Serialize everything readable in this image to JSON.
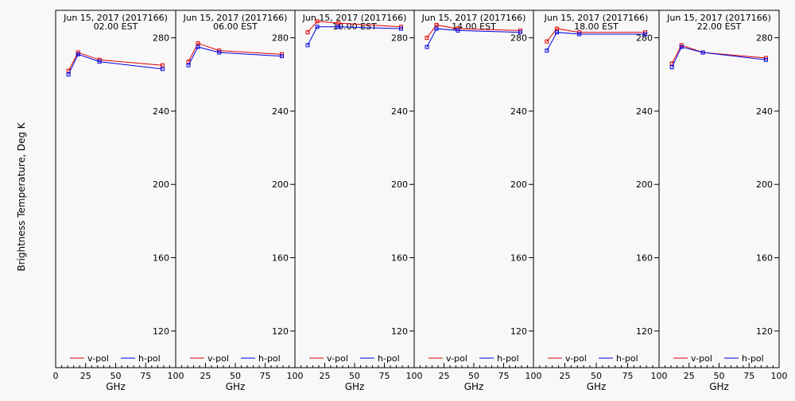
{
  "figure": {
    "ylabel": "Brightness Temperature, Deg K",
    "xlabel": "GHz",
    "colors": {
      "v_pol": "#e00000",
      "h_pol": "#0000e0"
    }
  },
  "chart_data": [
    {
      "type": "line",
      "title": "Jun 15, 2017 (2017166)",
      "subtitle": "02.00 EST",
      "xlabel": "GHz",
      "ylabel": "Brightness Temperature, Deg K",
      "xlim": [
        0,
        100
      ],
      "ylim": [
        100,
        295
      ],
      "xticks": [
        0,
        25,
        50,
        75,
        100
      ],
      "yticks": [
        120,
        160,
        200,
        240,
        280
      ],
      "x": [
        10.7,
        18.7,
        36.5,
        89.0
      ],
      "series": [
        {
          "name": "v-pol",
          "color": "#e00000",
          "values": [
            262,
            272,
            268,
            265
          ]
        },
        {
          "name": "h-pol",
          "color": "#0000e0",
          "values": [
            260,
            271,
            267,
            263
          ]
        }
      ],
      "legend": "bottom"
    },
    {
      "type": "line",
      "title": "Jun 15, 2017 (2017166)",
      "subtitle": "06.00 EST",
      "xlabel": "GHz",
      "xlim": [
        0,
        100
      ],
      "ylim": [
        100,
        295
      ],
      "xticks": [
        0,
        25,
        50,
        75,
        100
      ],
      "yticks": [
        120,
        160,
        200,
        240,
        280
      ],
      "x": [
        10.7,
        18.7,
        36.5,
        89.0
      ],
      "series": [
        {
          "name": "v-pol",
          "color": "#e00000",
          "values": [
            267,
            277,
            273,
            271
          ]
        },
        {
          "name": "h-pol",
          "color": "#0000e0",
          "values": [
            265,
            275,
            272,
            270
          ]
        }
      ],
      "legend": "bottom"
    },
    {
      "type": "line",
      "title": "Jun 15, 2017 (2017166)",
      "subtitle": "10.00 EST",
      "xlabel": "GHz",
      "xlim": [
        0,
        100
      ],
      "ylim": [
        100,
        295
      ],
      "xticks": [
        0,
        25,
        50,
        75,
        100
      ],
      "yticks": [
        120,
        160,
        200,
        240,
        280
      ],
      "x": [
        10.7,
        18.7,
        36.5,
        89.0
      ],
      "series": [
        {
          "name": "v-pol",
          "color": "#e00000",
          "values": [
            283,
            289,
            288,
            286
          ]
        },
        {
          "name": "h-pol",
          "color": "#0000e0",
          "values": [
            276,
            286,
            286,
            285
          ]
        }
      ],
      "legend": "bottom"
    },
    {
      "type": "line",
      "title": "Jun 15, 2017 (2017166)",
      "subtitle": "14.00 EST",
      "xlabel": "GHz",
      "xlim": [
        0,
        100
      ],
      "ylim": [
        100,
        295
      ],
      "xticks": [
        0,
        25,
        50,
        75,
        100
      ],
      "yticks": [
        120,
        160,
        200,
        240,
        280
      ],
      "x": [
        10.7,
        18.7,
        36.5,
        89.0
      ],
      "series": [
        {
          "name": "v-pol",
          "color": "#e00000",
          "values": [
            280,
            287,
            285,
            284
          ]
        },
        {
          "name": "h-pol",
          "color": "#0000e0",
          "values": [
            275,
            285,
            284,
            283
          ]
        }
      ],
      "legend": "bottom"
    },
    {
      "type": "line",
      "title": "Jun 15, 2017 (2017166)",
      "subtitle": "18.00 EST",
      "xlabel": "GHz",
      "xlim": [
        0,
        100
      ],
      "ylim": [
        100,
        295
      ],
      "xticks": [
        0,
        25,
        50,
        75,
        100
      ],
      "yticks": [
        120,
        160,
        200,
        240,
        280
      ],
      "x": [
        10.7,
        18.7,
        36.5,
        89.0
      ],
      "series": [
        {
          "name": "v-pol",
          "color": "#e00000",
          "values": [
            278,
            285,
            283,
            283
          ]
        },
        {
          "name": "h-pol",
          "color": "#0000e0",
          "values": [
            273,
            283,
            282,
            282
          ]
        }
      ],
      "legend": "bottom"
    },
    {
      "type": "line",
      "title": "Jun 15, 2017 (2017166)",
      "subtitle": "22.00 EST",
      "xlabel": "GHz",
      "xlim": [
        0,
        100
      ],
      "ylim": [
        100,
        295
      ],
      "xticks": [
        0,
        25,
        50,
        75,
        100
      ],
      "yticks": [
        120,
        160,
        200,
        240,
        280
      ],
      "x": [
        10.7,
        18.7,
        36.5,
        89.0
      ],
      "series": [
        {
          "name": "v-pol",
          "color": "#e00000",
          "values": [
            266,
            276,
            272,
            269
          ]
        },
        {
          "name": "h-pol",
          "color": "#0000e0",
          "values": [
            264,
            275,
            272,
            268
          ]
        }
      ],
      "legend": "bottom"
    }
  ]
}
